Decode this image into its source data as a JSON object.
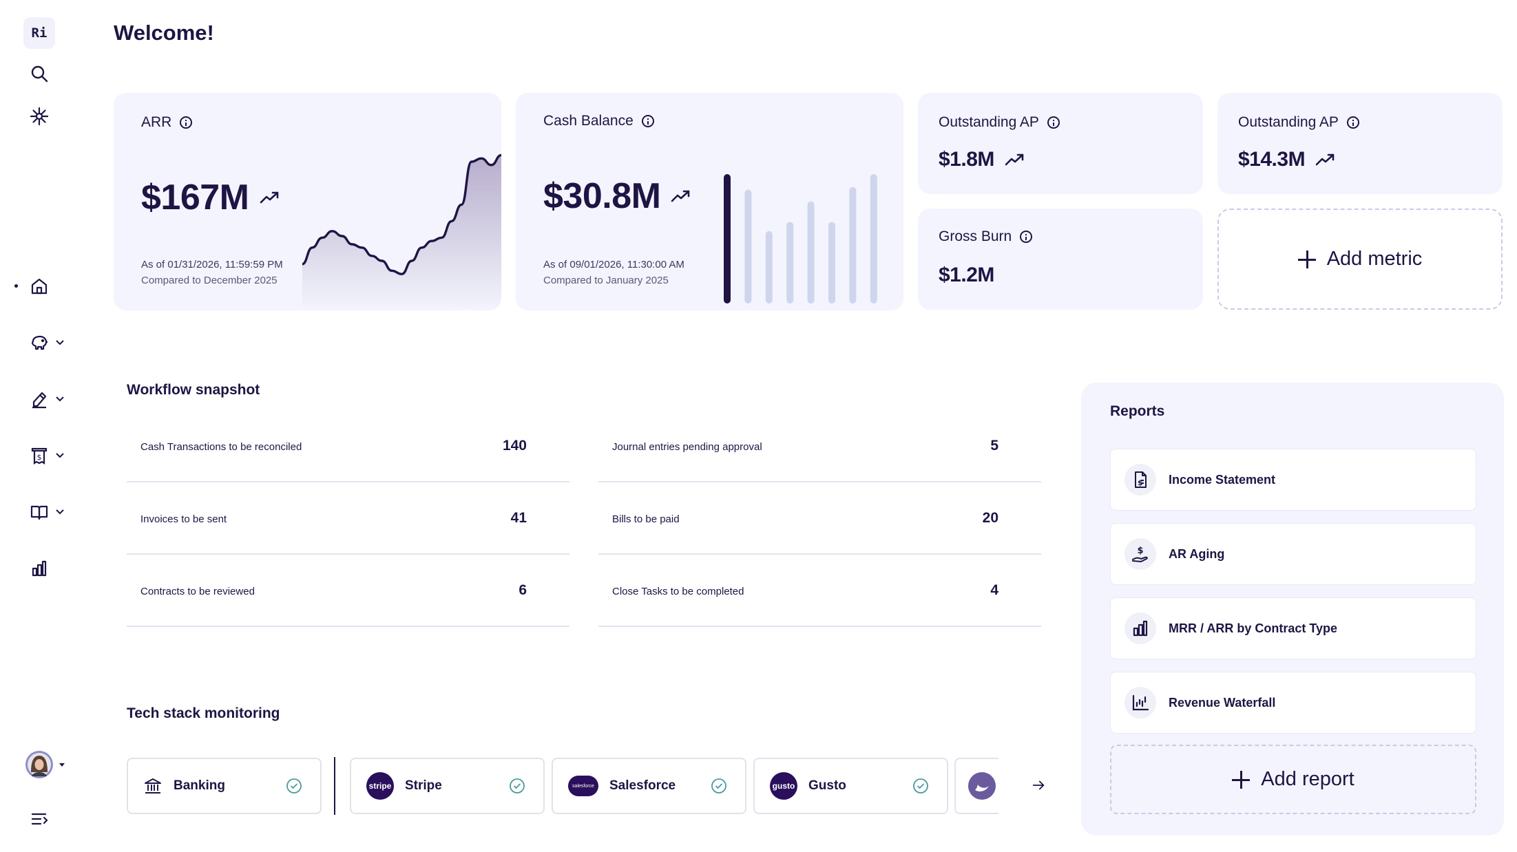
{
  "app": {
    "logo_text": "Ri"
  },
  "header": {
    "title": "Welcome!"
  },
  "metrics": {
    "arr": {
      "label": "ARR",
      "value": "$167M",
      "as_of": "As of 01/31/2026, 11:59:59 PM",
      "compared": "Compared to December 2025",
      "trend": [
        0.72,
        0.62,
        0.56,
        0.52,
        0.55,
        0.6,
        0.62,
        0.67,
        0.7,
        0.76,
        0.78,
        0.7,
        0.62,
        0.58,
        0.56,
        0.46,
        0.36,
        0.1,
        0.08,
        0.12,
        0.06
      ]
    },
    "cash_balance": {
      "label": "Cash Balance",
      "value": "$30.8M",
      "as_of": "As of 09/01/2026, 11:30:00 AM",
      "compared": "Compared to January 2025",
      "bars": [
        1.0,
        0.88,
        0.56,
        0.63,
        0.79,
        0.63,
        0.9,
        1.0
      ]
    },
    "outstanding_ap_1": {
      "label": "Outstanding AP",
      "value": "$1.8M"
    },
    "outstanding_ap_2": {
      "label": "Outstanding AP",
      "value": "$14.3M"
    },
    "gross_burn": {
      "label": "Gross Burn",
      "value": "$1.2M"
    },
    "add_metric_label": "Add metric"
  },
  "workflow": {
    "title": "Workflow snapshot",
    "items": [
      {
        "label": "Cash Transactions to be reconciled",
        "count": "140"
      },
      {
        "label": "Journal entries pending approval",
        "count": "5"
      },
      {
        "label": "Invoices to be sent",
        "count": "41"
      },
      {
        "label": "Bills to be paid",
        "count": "20"
      },
      {
        "label": "Contracts to be reviewed",
        "count": "6"
      },
      {
        "label": "Close Tasks to be completed",
        "count": "4"
      }
    ]
  },
  "tech_stack": {
    "title": "Tech stack monitoring",
    "items": [
      {
        "name": "Banking",
        "status": "connected"
      },
      {
        "name": "Stripe",
        "logo_text": "stripe",
        "color": "#2a0f5c",
        "status": "connected"
      },
      {
        "name": "Salesforce",
        "logo_text": "salesforce",
        "color": "#2a0f5c",
        "status": "connected"
      },
      {
        "name": "Gusto",
        "logo_text": "gusto",
        "color": "#2a0f5c",
        "status": "connected"
      }
    ]
  },
  "reports": {
    "title": "Reports",
    "items": [
      {
        "name": "Income Statement",
        "icon": "document-dollar-icon"
      },
      {
        "name": "AR Aging",
        "icon": "hand-dollar-icon"
      },
      {
        "name": "MRR / ARR by Contract Type",
        "icon": "bar-chart-icon"
      },
      {
        "name": "Revenue Waterfall",
        "icon": "waterfall-chart-icon"
      }
    ],
    "add_report_label": "Add report"
  },
  "colors": {
    "primary": "#1f1544",
    "card_bg": "#f3f4fd",
    "bar": "#cfd5ec",
    "check": "#4a9a9e"
  }
}
